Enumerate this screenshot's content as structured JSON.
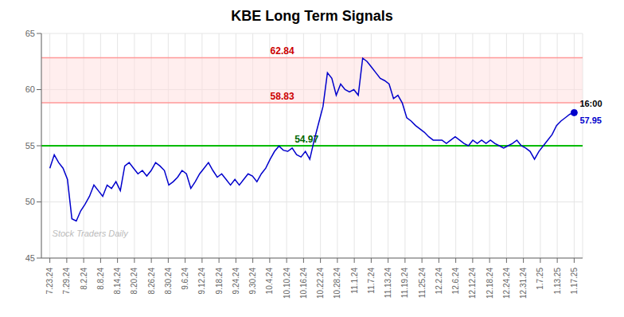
{
  "chart_data": {
    "type": "line",
    "title": "KBE Long Term Signals",
    "x": [
      0,
      0.2605,
      0.521,
      0.7815,
      1.042,
      1.3025,
      1.563,
      1.8235,
      2.084,
      2.3445,
      2.605,
      2.8655,
      3.1261,
      3.3866,
      3.6471,
      3.9076,
      4.1681,
      4.4286,
      4.6891,
      4.9496,
      5.2101,
      5.4706,
      5.7311,
      5.9916,
      6.2521,
      6.5126,
      6.7731,
      7.0336,
      7.2941,
      7.5546,
      7.8151,
      8.0756,
      8.3361,
      8.5966,
      8.8571,
      9.1176,
      9.3782,
      9.6387,
      9.8992,
      10.1597,
      10.4202,
      10.6807,
      10.9412,
      11.2017,
      11.4622,
      11.7227,
      11.9832,
      12.2437,
      12.5042,
      12.7647,
      13.0252,
      13.2857,
      13.5462,
      13.8067,
      14.0672,
      14.3277,
      14.5882,
      14.8487,
      15.1092,
      15.3697,
      15.6303,
      15.8908,
      16.1513,
      16.4118,
      16.6723,
      16.9328,
      17.1933,
      17.4538,
      17.7143,
      17.9748,
      18.2353,
      18.4958,
      18.7563,
      19.0168,
      19.2773,
      19.5378,
      19.7983,
      20.0588,
      20.3193,
      20.5798,
      20.8403,
      21.1008,
      21.3613,
      21.6218,
      21.8824,
      22.1429,
      22.4034,
      22.6639,
      22.9244,
      23.1849,
      23.4454,
      23.7059,
      23.9664,
      24.2269,
      24.4874,
      24.7479,
      25.0084,
      25.2689,
      25.5294,
      25.7899,
      26.0504,
      26.3109,
      26.5714,
      26.8319,
      27.0924,
      27.3529,
      27.6134,
      27.8739,
      28.1345,
      28.395,
      28.6555,
      28.916,
      29.1765,
      29.437,
      29.6975,
      29.958,
      30.2185,
      30.479,
      30.7395,
      31
    ],
    "values": [
      53.0,
      54.2,
      53.5,
      53.0,
      52.0,
      48.5,
      48.3,
      49.2,
      49.8,
      50.5,
      51.5,
      51.0,
      50.5,
      51.5,
      51.2,
      51.8,
      51.0,
      53.2,
      53.5,
      53.0,
      52.5,
      52.8,
      52.3,
      52.8,
      53.5,
      53.2,
      52.8,
      51.5,
      51.8,
      52.2,
      52.8,
      52.5,
      51.2,
      51.8,
      52.5,
      53.0,
      53.5,
      52.8,
      52.2,
      52.5,
      52.0,
      51.5,
      52.0,
      51.5,
      52.0,
      52.5,
      52.3,
      51.8,
      52.5,
      53.0,
      53.8,
      54.5,
      54.97,
      54.6,
      54.5,
      54.8,
      54.2,
      54.0,
      54.5,
      53.8,
      55.5,
      57.0,
      58.5,
      61.5,
      61.0,
      59.5,
      60.5,
      60.0,
      59.8,
      60.0,
      59.5,
      62.8,
      62.5,
      62.0,
      61.5,
      61.0,
      60.8,
      60.5,
      59.2,
      59.5,
      58.8,
      57.5,
      57.2,
      56.8,
      56.5,
      56.2,
      55.8,
      55.5,
      55.5,
      55.5,
      55.2,
      55.5,
      55.8,
      55.5,
      55.2,
      55.0,
      55.5,
      55.2,
      55.5,
      55.2,
      55.5,
      55.2,
      55.0,
      54.8,
      55.0,
      55.2,
      55.5,
      55.0,
      54.8,
      54.5,
      53.8,
      54.5,
      55.0,
      55.5,
      56.0,
      56.8,
      57.2,
      57.5,
      57.8,
      57.95
    ],
    "color": "#0000cc",
    "xlim": [
      -0.5,
      31.5
    ],
    "xticks": [
      {
        "value": 0,
        "label": "7.23.24"
      },
      {
        "value": 1,
        "label": "7.29.24"
      },
      {
        "value": 2,
        "label": "8.2.24"
      },
      {
        "value": 3,
        "label": "8.8.24"
      },
      {
        "value": 4,
        "label": "8.14.24"
      },
      {
        "value": 5,
        "label": "8.20.24"
      },
      {
        "value": 6,
        "label": "8.26.24"
      },
      {
        "value": 7,
        "label": "8.30.24"
      },
      {
        "value": 8,
        "label": "9.6.24"
      },
      {
        "value": 9,
        "label": "9.12.24"
      },
      {
        "value": 10,
        "label": "9.18.24"
      },
      {
        "value": 11,
        "label": "9.24.24"
      },
      {
        "value": 12,
        "label": "9.30.24"
      },
      {
        "value": 13,
        "label": "10.4.24"
      },
      {
        "value": 14,
        "label": "10.10.24"
      },
      {
        "value": 15,
        "label": "10.16.24"
      },
      {
        "value": 16,
        "label": "10.22.24"
      },
      {
        "value": 17,
        "label": "10.28.24"
      },
      {
        "value": 18,
        "label": "11.1.24"
      },
      {
        "value": 19,
        "label": "11.7.24"
      },
      {
        "value": 20,
        "label": "11.13.24"
      },
      {
        "value": 21,
        "label": "11.19.24"
      },
      {
        "value": 22,
        "label": "11.25.24"
      },
      {
        "value": 23,
        "label": "12.2.24"
      },
      {
        "value": 24,
        "label": "12.6.24"
      },
      {
        "value": 25,
        "label": "12.12.24"
      },
      {
        "value": 26,
        "label": "12.18.24"
      },
      {
        "value": 27,
        "label": "12.24.24"
      },
      {
        "value": 28,
        "label": "12.31.24"
      },
      {
        "value": 29,
        "label": "1.7.25"
      },
      {
        "value": 30,
        "label": "1.13.25"
      },
      {
        "value": 31,
        "label": "1.17.25"
      }
    ],
    "ylim": [
      45,
      65
    ],
    "yticks": [
      45,
      50,
      55,
      60,
      65
    ],
    "grid": true,
    "bands": [
      {
        "y_from": 58.83,
        "y_to": 62.84,
        "color": "#ffdddd"
      }
    ],
    "reference_lines": [
      {
        "y": 62.84,
        "label": "62.84",
        "color": "#ff9999",
        "label_color": "#cc0000"
      },
      {
        "y": 58.83,
        "label": "58.83",
        "color": "#ff9999",
        "label_color": "#cc0000"
      },
      {
        "y": 55.0,
        "label": "54.97",
        "color": "#00bb00",
        "label_color": "#006600"
      }
    ],
    "annotations": [
      {
        "x": 31,
        "y": 57.95,
        "texts": [
          {
            "text": "16:00",
            "color": "#000000"
          },
          {
            "text": "57.95",
            "color": "#0000cc"
          }
        ]
      }
    ],
    "watermark": "Stock Traders Daily"
  }
}
